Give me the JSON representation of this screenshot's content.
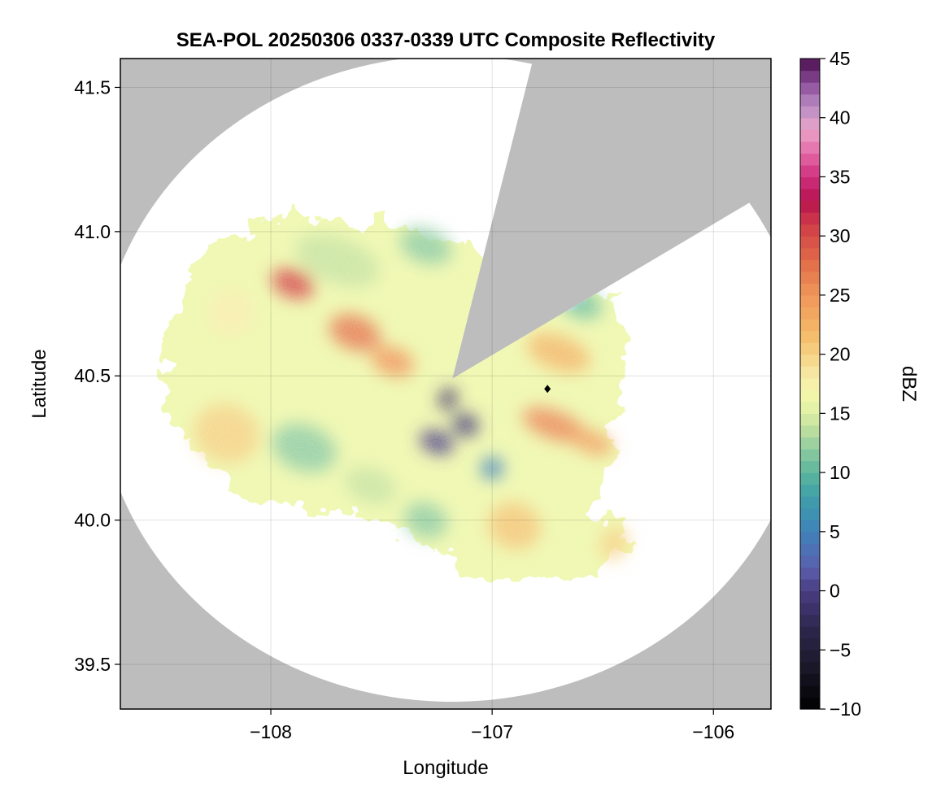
{
  "chart_data": {
    "type": "heatmap",
    "title": "SEA-POL 20250306 0337-0339 UTC Composite Reflectivity",
    "xlabel": "Longitude",
    "ylabel": "Latitude",
    "xlim": [
      -108.68,
      -105.74
    ],
    "ylim": [
      39.345,
      41.6
    ],
    "x_ticks": [
      -108,
      -107,
      -106
    ],
    "x_tick_labels": [
      "−108",
      "−107",
      "−106"
    ],
    "y_ticks": [
      39.5,
      40.0,
      40.5,
      41.0,
      41.5
    ],
    "y_tick_labels": [
      "39.5",
      "40.0",
      "40.5",
      "41.0",
      "41.5"
    ],
    "grid": true,
    "background_color": "#bdbdbd",
    "coverage_color": "#ffffff",
    "radar": {
      "center": [
        -107.18,
        40.49
      ],
      "range_lon": 1.6,
      "range_lat": 1.12,
      "blocked_sectors_deg": [
        [
          13,
          57
        ]
      ],
      "marker": [
        -106.75,
        40.455
      ]
    },
    "colorbar": {
      "label": "dBZ",
      "min": -10,
      "max": 45,
      "step": 1,
      "ticks": [
        -10,
        -5,
        0,
        5,
        10,
        15,
        20,
        25,
        30,
        35,
        40,
        45
      ],
      "tick_labels": [
        "−10",
        "−5",
        "0",
        "5",
        "10",
        "15",
        "20",
        "25",
        "30",
        "35",
        "40",
        "45"
      ],
      "colormap": [
        [
          -10,
          "#000000"
        ],
        [
          -6,
          "#1c1a2e"
        ],
        [
          -3,
          "#2e2750"
        ],
        [
          0,
          "#4a3d82"
        ],
        [
          2,
          "#5b5fae"
        ],
        [
          5,
          "#3f82ba"
        ],
        [
          8,
          "#3f9fa8"
        ],
        [
          10,
          "#5bb59c"
        ],
        [
          12,
          "#8fcca1"
        ],
        [
          14,
          "#c6e39e"
        ],
        [
          16,
          "#eef7aa"
        ],
        [
          18,
          "#f8edab"
        ],
        [
          20,
          "#f5d283"
        ],
        [
          22,
          "#f3b766"
        ],
        [
          25,
          "#f0975a"
        ],
        [
          28,
          "#e06a48"
        ],
        [
          31,
          "#cf3c48"
        ],
        [
          33,
          "#b5134e"
        ],
        [
          35,
          "#cf2f7f"
        ],
        [
          37,
          "#e46aa6"
        ],
        [
          39,
          "#e9a4c8"
        ],
        [
          41,
          "#b88cc4"
        ],
        [
          43,
          "#8a4a97"
        ],
        [
          45,
          "#4a0f4e"
        ]
      ]
    },
    "echo_regions": [
      {
        "lon": -107.9,
        "lat": 40.82,
        "dlon": 0.1,
        "dlat": 0.05,
        "dbz": 30
      },
      {
        "lon": -107.62,
        "lat": 40.65,
        "dlon": 0.12,
        "dlat": 0.06,
        "dbz": 27
      },
      {
        "lon": -107.45,
        "lat": 40.55,
        "dlon": 0.1,
        "dlat": 0.05,
        "dbz": 25
      },
      {
        "lon": -108.18,
        "lat": 40.72,
        "dlon": 0.1,
        "dlat": 0.08,
        "dbz": 18
      },
      {
        "lon": -107.7,
        "lat": 40.9,
        "dlon": 0.2,
        "dlat": 0.08,
        "dbz": 14
      },
      {
        "lon": -107.3,
        "lat": 40.95,
        "dlon": 0.12,
        "dlat": 0.06,
        "dbz": 12
      },
      {
        "lon": -108.2,
        "lat": 40.3,
        "dlon": 0.15,
        "dlat": 0.1,
        "dbz": 20
      },
      {
        "lon": -107.85,
        "lat": 40.25,
        "dlon": 0.15,
        "dlat": 0.08,
        "dbz": 12
      },
      {
        "lon": -107.55,
        "lat": 40.12,
        "dlon": 0.12,
        "dlat": 0.06,
        "dbz": 14
      },
      {
        "lon": -107.25,
        "lat": 40.27,
        "dlon": 0.08,
        "dlat": 0.04,
        "dbz": 0
      },
      {
        "lon": -107.12,
        "lat": 40.33,
        "dlon": 0.06,
        "dlat": 0.04,
        "dbz": -1
      },
      {
        "lon": -107.2,
        "lat": 40.42,
        "dlon": 0.04,
        "dlat": 0.04,
        "dbz": -2
      },
      {
        "lon": -107.0,
        "lat": 40.18,
        "dlon": 0.05,
        "dlat": 0.04,
        "dbz": 5
      },
      {
        "lon": -106.72,
        "lat": 40.33,
        "dlon": 0.15,
        "dlat": 0.05,
        "dbz": 26
      },
      {
        "lon": -106.55,
        "lat": 40.27,
        "dlon": 0.1,
        "dlat": 0.04,
        "dbz": 24
      },
      {
        "lon": -106.7,
        "lat": 40.58,
        "dlon": 0.15,
        "dlat": 0.06,
        "dbz": 22
      },
      {
        "lon": -106.6,
        "lat": 40.75,
        "dlon": 0.1,
        "dlat": 0.05,
        "dbz": 11
      },
      {
        "lon": -106.9,
        "lat": 39.98,
        "dlon": 0.12,
        "dlat": 0.08,
        "dbz": 21
      },
      {
        "lon": -107.3,
        "lat": 40.0,
        "dlon": 0.1,
        "dlat": 0.06,
        "dbz": 12
      },
      {
        "lon": -106.45,
        "lat": 39.92,
        "dlon": 0.06,
        "dlat": 0.06,
        "dbz": 20
      }
    ]
  }
}
